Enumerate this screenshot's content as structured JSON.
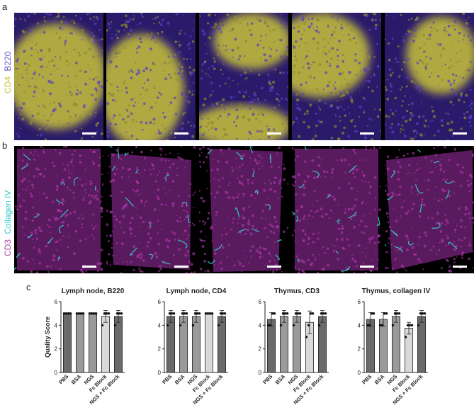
{
  "panels": {
    "a": "a",
    "b": "b",
    "c": "c"
  },
  "row_a": {
    "label_marker": "CD4",
    "label_b220": "B220",
    "conditions": [
      "PBS",
      "BSA",
      "NGS",
      "Fc Block",
      "NGS + Fc Block"
    ]
  },
  "row_b": {
    "label_cd3": "CD3",
    "label_collagen": "Collagen IV"
  },
  "colors": {
    "b220": "#5a3fc0",
    "cd4": "#c8c23a",
    "cd3": "#9a2a9a",
    "collagen": "#36c9c9",
    "bar_dark": "#6a6a6a",
    "bar_mid": "#9a9a9a",
    "bar_light": "#d9d9d9"
  },
  "chart_data": [
    {
      "type": "bar",
      "title": "Lymph node, B220",
      "ylabel": "Quality Score",
      "ylim": [
        0,
        6
      ],
      "yticks": [
        0,
        2,
        4,
        6
      ],
      "categories": [
        "PBS",
        "BSA",
        "NGS",
        "Fc Block",
        "NGS + Fc Block"
      ],
      "values": [
        5,
        5,
        5,
        4.75,
        4.75
      ],
      "errors": [
        0,
        0,
        0,
        0.5,
        0.5
      ],
      "points": [
        [
          5,
          5,
          5,
          5
        ],
        [
          5,
          5,
          5,
          5
        ],
        [
          5,
          5,
          5,
          5
        ],
        [
          4,
          5,
          5,
          5
        ],
        [
          4,
          5,
          5,
          5
        ]
      ]
    },
    {
      "type": "bar",
      "title": "Lymph node, CD4",
      "ylabel": "",
      "ylim": [
        0,
        6
      ],
      "yticks": [
        0,
        2,
        4,
        6
      ],
      "categories": [
        "PBS",
        "BSA",
        "NGS",
        "Fc Block",
        "NGS + Fc Block"
      ],
      "values": [
        4.75,
        4.75,
        4.75,
        5,
        4.75
      ],
      "errors": [
        0.5,
        0.5,
        0.5,
        0,
        0.5
      ],
      "points": [
        [
          4,
          5,
          5,
          5
        ],
        [
          4,
          5,
          5,
          5
        ],
        [
          4,
          5,
          5,
          5
        ],
        [
          5,
          5,
          5,
          5
        ],
        [
          4,
          5,
          5,
          5
        ]
      ]
    },
    {
      "type": "bar",
      "title": "Thymus, CD3",
      "ylabel": "",
      "ylim": [
        0,
        6
      ],
      "yticks": [
        0,
        2,
        4,
        6
      ],
      "categories": [
        "PBS",
        "BSA",
        "NGS",
        "Fc Block",
        "NGS + Fc Block"
      ],
      "values": [
        4.5,
        4.75,
        4.75,
        4.25,
        4.75
      ],
      "errors": [
        0.58,
        0.5,
        0.5,
        0.96,
        0.5
      ],
      "points": [
        [
          4,
          4,
          5,
          5
        ],
        [
          4,
          5,
          5,
          5
        ],
        [
          4,
          5,
          5,
          5
        ],
        [
          3,
          4,
          5,
          5
        ],
        [
          4,
          5,
          5,
          5
        ]
      ]
    },
    {
      "type": "bar",
      "title": "Thymus, collagen IV",
      "ylabel": "",
      "ylim": [
        0,
        6
      ],
      "yticks": [
        0,
        2,
        4,
        6
      ],
      "categories": [
        "PBS",
        "BSA",
        "NGS",
        "Fc Block",
        "NGS + Fc Block"
      ],
      "values": [
        4.5,
        4.5,
        4.75,
        3.75,
        4.75
      ],
      "errors": [
        0.58,
        0.58,
        0.5,
        0.5,
        0.5
      ],
      "points": [
        [
          4,
          4,
          5,
          5
        ],
        [
          4,
          4,
          5,
          5
        ],
        [
          4,
          5,
          5,
          5
        ],
        [
          3,
          4,
          4,
          4
        ],
        [
          4,
          5,
          5,
          5
        ]
      ]
    }
  ]
}
